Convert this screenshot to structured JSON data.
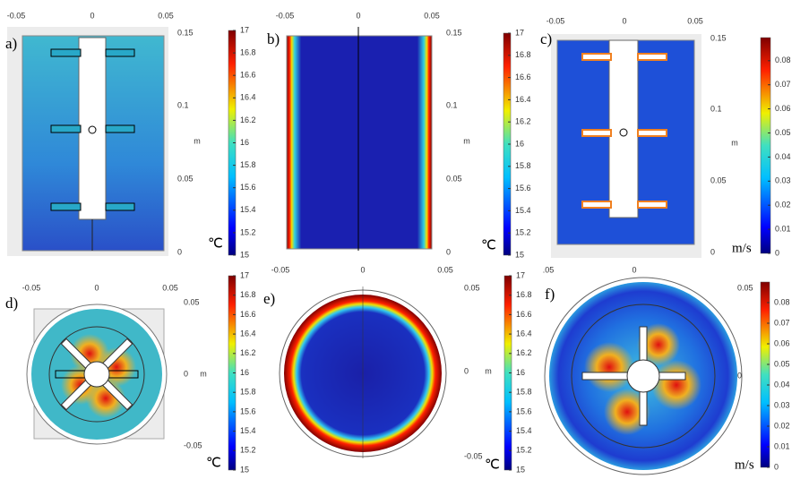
{
  "panels": [
    {
      "label": "a)",
      "top_ticks": [
        -0.05,
        0,
        0.05
      ],
      "side_ticks": [
        0.15,
        0.1,
        0.05,
        0
      ],
      "axis_unit": "m",
      "colorbar_ticks": [
        15,
        15.2,
        15.4,
        15.6,
        15.8,
        16,
        16.2,
        16.4,
        16.6,
        16.8,
        17
      ],
      "colorbar_unit": "℃"
    },
    {
      "label": "b)",
      "top_ticks": [
        -0.05,
        0,
        0.05
      ],
      "side_ticks": [
        0.15,
        0.1,
        0.05,
        0
      ],
      "axis_unit": "m",
      "colorbar_ticks": [
        15,
        15.2,
        15.4,
        15.6,
        15.8,
        16,
        16.2,
        16.4,
        16.6,
        16.8,
        17
      ],
      "colorbar_unit": "℃"
    },
    {
      "label": "c)",
      "top_ticks": [
        -0.05,
        0,
        0.05
      ],
      "side_ticks": [
        0.15,
        0.1,
        0.05,
        0
      ],
      "axis_unit": "m",
      "colorbar_ticks": [
        0,
        0.01,
        0.02,
        0.03,
        0.04,
        0.05,
        0.06,
        0.07,
        0.08
      ],
      "colorbar_unit": "m/s"
    },
    {
      "label": "d)",
      "top_ticks": [
        -0.05,
        0,
        0.05
      ],
      "side_ticks": [
        0.05,
        0,
        -0.05
      ],
      "axis_unit": "m",
      "colorbar_ticks": [
        15,
        15.2,
        15.4,
        15.6,
        15.8,
        16,
        16.2,
        16.4,
        16.6,
        16.8,
        17
      ],
      "colorbar_unit": "℃"
    },
    {
      "label": "e)",
      "top_ticks": [
        -0.05,
        0,
        0.05
      ],
      "side_ticks": [
        0.05,
        0,
        -0.05
      ],
      "axis_unit": "m",
      "colorbar_ticks": [
        15,
        15.2,
        15.4,
        15.6,
        15.8,
        16,
        16.2,
        16.4,
        16.6,
        16.8,
        17
      ],
      "colorbar_unit": "℃"
    },
    {
      "label": "f)",
      "top_ticks": [
        ".05",
        0
      ],
      "side_ticks": [
        0.05,
        0
      ],
      "axis_unit": "m",
      "colorbar_ticks": [
        0,
        0.01,
        0.02,
        0.03,
        0.04,
        0.05,
        0.06,
        0.07,
        0.08
      ],
      "colorbar_unit": "m/s"
    }
  ]
}
